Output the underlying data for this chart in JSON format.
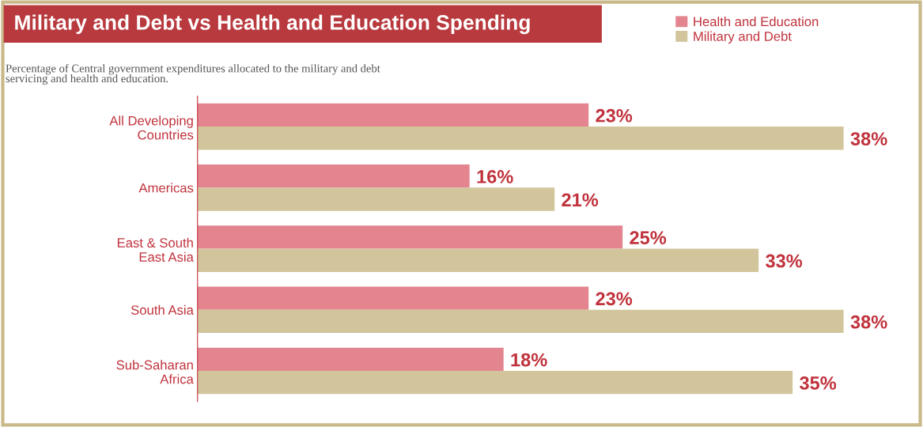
{
  "chart_data": {
    "type": "bar",
    "orientation": "horizontal",
    "title": "Military and Debt vs Health and Education Spending",
    "subtitle": "Percentage of Central government expenditures allocated to the military and debt\nservicing and health and education.",
    "categories": [
      "All Developing\nCountries",
      "Americas",
      "East & South\nEast Asia",
      "South Asia",
      "Sub-Saharan\nAfrica"
    ],
    "series": [
      {
        "name": "Health and Education",
        "color": "#e3848f",
        "values": [
          23,
          16,
          25,
          23,
          18
        ],
        "value_labels": [
          "23%",
          "16%",
          "25%",
          "23%",
          "18%"
        ]
      },
      {
        "name": "Military and Debt",
        "color": "#d2c59c",
        "values": [
          38,
          21,
          33,
          38,
          35
        ],
        "value_labels": [
          "38%",
          "21%",
          "33%",
          "38%",
          "35%"
        ]
      }
    ],
    "legend": "top right",
    "grid": false
  }
}
